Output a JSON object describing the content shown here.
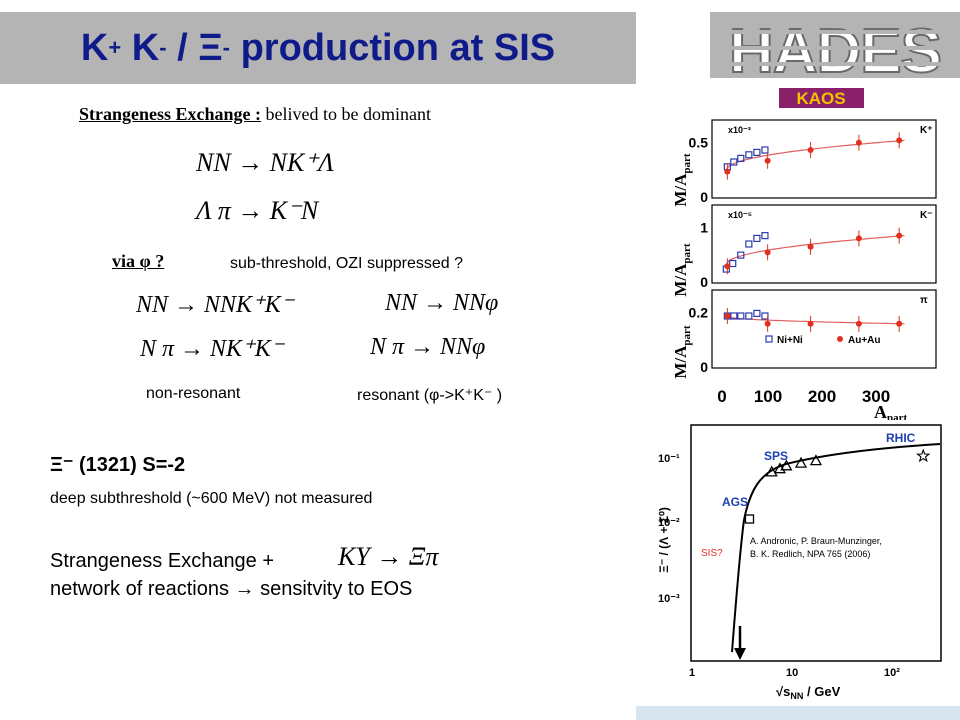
{
  "title": {
    "K": "K",
    "plus": "+",
    "Km": "K",
    "minus": "-",
    "slash": "/",
    "Xi": "Ξ",
    "ximinus": "-",
    "rest": "production at SIS"
  },
  "logo": {
    "text": "HADES"
  },
  "strangeness": {
    "label": "Strangeness Exchange :",
    "rest": "belived to be dominant"
  },
  "reactions": {
    "r1": "NN  →  NK⁺Λ",
    "r2": "Λ π  →  K⁻N"
  },
  "via": {
    "label": "via φ ?",
    "note": "sub-threshold, OZI suppressed ?"
  },
  "phi_reactions": {
    "nonres1": "NN  →  NNK⁺K⁻",
    "res1": "NN  →  NNφ",
    "nonres2": "N π  →  NK⁺K⁻",
    "res2": "N π  →  NNφ",
    "nonres_label": "non-resonant",
    "res_label": "resonant (φ->K⁺K⁻ )"
  },
  "xi": {
    "header": "Ξ⁻ (1321)  S=-2",
    "deep": "deep  subthreshold (~600 MeV) not measured",
    "se": "Strangeness Exchange  +",
    "se_formula": "KY  →  Ξπ",
    "network": "network of reactions  →  sensitvity to EOS"
  },
  "kaos_plot": {
    "logo": "KAOS",
    "y_label": "M/A",
    "y_label_sub": "part",
    "x_label": "A",
    "x_label_sub": "part",
    "x_ticks": [
      "0",
      "100",
      "200",
      "300"
    ],
    "panels": [
      {
        "scale": "x10⁻³",
        "particle": "K⁺",
        "ticks": [
          "0.5",
          "0"
        ]
      },
      {
        "scale": "x10⁻⁵",
        "particle": "K⁻",
        "ticks": [
          "1",
          "0"
        ]
      },
      {
        "scale": "",
        "particle": "π",
        "ticks": [
          "0.2",
          "0"
        ]
      }
    ],
    "legend": [
      "Ni+Ni",
      "Au+Au"
    ]
  },
  "sis_plot": {
    "y_label": "Ξ⁻ / (Λ + Σ⁰)",
    "x_label": "√s",
    "x_label_sub": "NN",
    "x_label_tail": "/ GeV",
    "y_ticks": [
      "10⁻¹",
      "10⁻²",
      "10⁻³"
    ],
    "x_ticks": [
      "1",
      "10",
      "10²"
    ],
    "labels": [
      "RHIC",
      "SPS",
      "AGS",
      "SIS?"
    ],
    "ref_a": "A.    Andronic, P. Braun-Munzinger,",
    "ref_b": "B.    K. Redlich, NPA 765 (2006)"
  },
  "chart_data": [
    {
      "type": "scatter",
      "title": "",
      "xlabel": "A_part",
      "ylabel": "M/A_part",
      "xlim": [
        0,
        380
      ],
      "panels": [
        {
          "particle": "K+",
          "scale": "x10^-3",
          "ylim": [
            0,
            0.65
          ],
          "series": [
            {
              "name": "Ni+Ni",
              "x": [
                10,
                22,
                35,
                50,
                65,
                80
              ],
              "y": [
                0.26,
                0.3,
                0.33,
                0.36,
                0.38,
                0.4
              ]
            },
            {
              "name": "Au+Au",
              "x": [
                10,
                85,
                165,
                255,
                330
              ],
              "y": [
                0.22,
                0.31,
                0.4,
                0.46,
                0.48
              ]
            }
          ]
        },
        {
          "particle": "K-",
          "scale": "x10^-5",
          "ylim": [
            0,
            1.4
          ],
          "series": [
            {
              "name": "Ni+Ni",
              "x": [
                8,
                20,
                35,
                50,
                65,
                80
              ],
              "y": [
                0.25,
                0.35,
                0.5,
                0.7,
                0.8,
                0.85
              ]
            },
            {
              "name": "Au+Au",
              "x": [
                10,
                85,
                165,
                255,
                330
              ],
              "y": [
                0.3,
                0.55,
                0.65,
                0.8,
                0.85
              ]
            }
          ]
        },
        {
          "particle": "pi",
          "scale": "",
          "ylim": [
            0,
            0.3
          ],
          "series": [
            {
              "name": "Ni+Ni",
              "x": [
                10,
                22,
                35,
                50,
                65,
                80
              ],
              "y": [
                0.2,
                0.2,
                0.2,
                0.2,
                0.21,
                0.2
              ]
            },
            {
              "name": "Au+Au",
              "x": [
                10,
                85,
                165,
                255,
                330
              ],
              "y": [
                0.2,
                0.17,
                0.17,
                0.17,
                0.17
              ]
            }
          ]
        }
      ]
    },
    {
      "type": "scatter",
      "title": "",
      "xlabel": "√s_NN / GeV",
      "ylabel": "Ξ⁻ / (Λ + Σ⁰)",
      "xscale": "log",
      "yscale": "log",
      "xlim": [
        1,
        300
      ],
      "ylim": [
        0.0003,
        0.2
      ],
      "series": [
        {
          "name": "AGS",
          "x": [
            3.8
          ],
          "y": [
            0.015
          ]
        },
        {
          "name": "SPS",
          "x": [
            6.3,
            7.6,
            8.8,
            12.3,
            17.3
          ],
          "y": [
            0.055,
            0.06,
            0.065,
            0.07,
            0.075
          ]
        },
        {
          "name": "RHIC",
          "x": [
            200
          ],
          "y": [
            0.085
          ]
        }
      ]
    }
  ]
}
